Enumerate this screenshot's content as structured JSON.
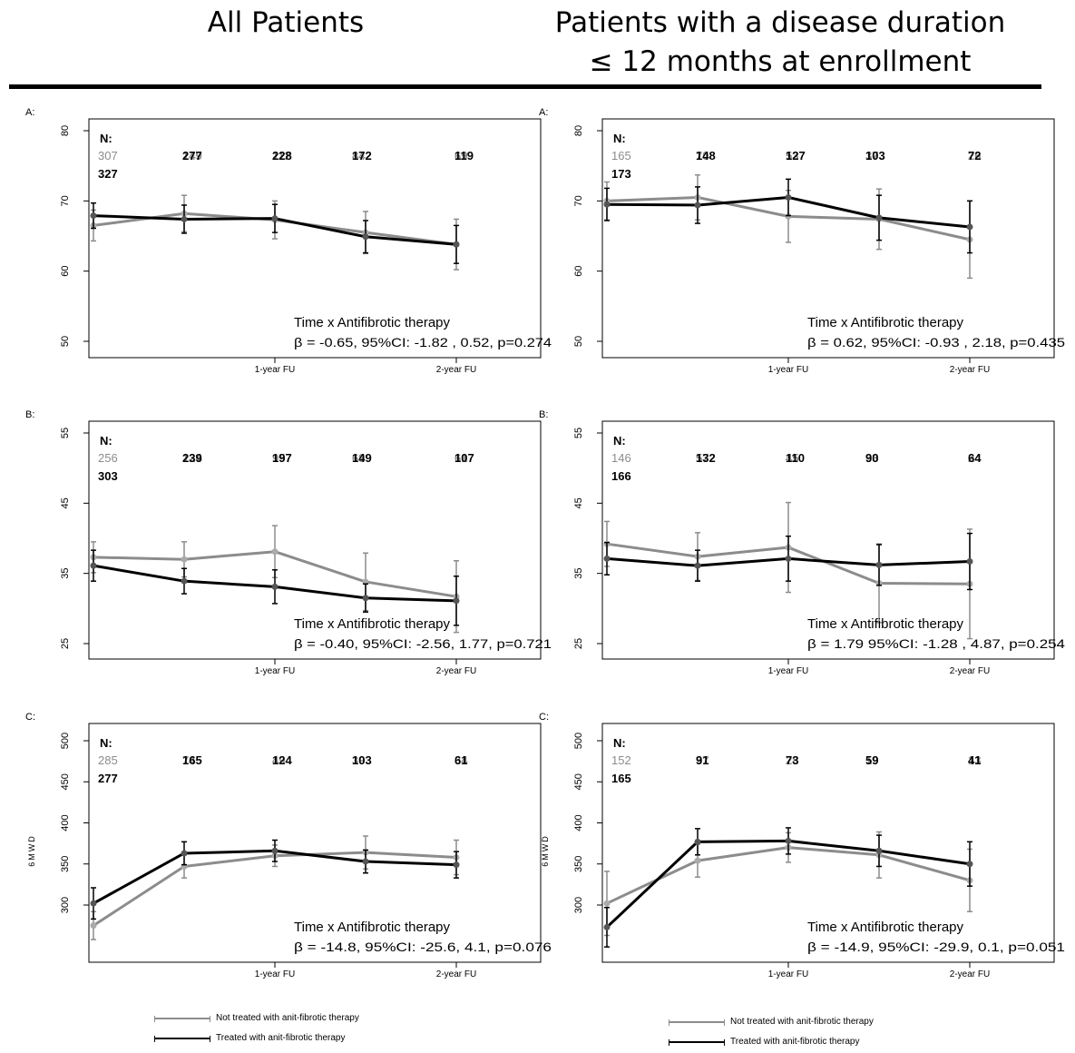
{
  "headings": {
    "left": "All Patients",
    "right_line1": "Patients with a disease duration",
    "right_line2": "≤ 12 months at enrollment"
  },
  "colors": {
    "not_treated": "#8c8c8c",
    "treated": "#000000"
  },
  "legend": {
    "not_treated_label": "Not treated with anit-fibrotic therapy",
    "treated_label": "Treated with anit-fibrotic therapy"
  },
  "chart_data": [
    {
      "type": "line",
      "panel_label": "A:",
      "group": "All Patients",
      "x": [
        0,
        0.5,
        1,
        1.5,
        2
      ],
      "xticks": [
        {
          "x": 1,
          "label": "1-year FU"
        },
        {
          "x": 2,
          "label": "2-year FU"
        }
      ],
      "ylim": [
        50,
        80
      ],
      "yticks": [
        50,
        60,
        70,
        80
      ],
      "ylabel": "",
      "series": [
        {
          "key": "not_treated",
          "values": [
            66.5,
            68.2,
            67.3,
            65.5,
            63.8
          ],
          "ci_low": [
            64.3,
            65.6,
            64.6,
            62.5,
            60.2
          ],
          "ci_high": [
            68.7,
            70.8,
            70.0,
            68.5,
            67.4
          ]
        },
        {
          "key": "treated",
          "values": [
            67.9,
            67.4,
            67.5,
            64.9,
            63.8
          ],
          "ci_low": [
            66.1,
            65.4,
            65.5,
            62.6,
            61.1
          ],
          "ci_high": [
            69.7,
            69.4,
            69.5,
            67.2,
            66.5
          ]
        }
      ],
      "n_label": "N:",
      "n_rows": {
        "not_treated": [
          "307",
          "149",
          "112",
          "84",
          "69"
        ],
        "treated": [
          "327",
          "277",
          "228",
          "172",
          "119"
        ]
      },
      "annotation_line1": "Time x Antifibrotic therapy",
      "annotation_line2": "β = -0.65, 95%CI: -1.82 , 0.52, p=0.274"
    },
    {
      "type": "line",
      "panel_label": "A:",
      "group": "Disease duration ≤ 12 months",
      "x": [
        0,
        0.5,
        1,
        1.5,
        2
      ],
      "xticks": [
        {
          "x": 1,
          "label": "1-year FU"
        },
        {
          "x": 2,
          "label": "2-year FU"
        }
      ],
      "ylim": [
        50,
        80
      ],
      "yticks": [
        50,
        60,
        70,
        80
      ],
      "ylabel": "",
      "series": [
        {
          "key": "not_treated",
          "values": [
            70.0,
            70.5,
            67.8,
            67.4,
            64.5
          ],
          "ci_low": [
            67.3,
            67.3,
            64.1,
            63.1,
            59.0
          ],
          "ci_high": [
            72.7,
            73.7,
            71.5,
            71.7,
            70.0
          ]
        },
        {
          "key": "treated",
          "values": [
            69.5,
            69.4,
            70.5,
            67.6,
            66.3
          ],
          "ci_low": [
            67.2,
            66.8,
            67.9,
            64.4,
            62.6
          ],
          "ci_high": [
            71.8,
            72.0,
            73.1,
            70.8,
            70.0
          ]
        }
      ],
      "n_label": "N:",
      "n_rows": {
        "not_treated": [
          "165",
          "70",
          "53",
          "37",
          "26"
        ],
        "treated": [
          "173",
          "148",
          "127",
          "103",
          "72"
        ]
      },
      "annotation_line1": "Time x Antifibrotic therapy",
      "annotation_line2": "β = 0.62, 95%CI: -0.93 , 2.18, p=0.435"
    },
    {
      "type": "line",
      "panel_label": "B:",
      "group": "All Patients",
      "x": [
        0,
        0.5,
        1,
        1.5,
        2
      ],
      "xticks": [
        {
          "x": 1,
          "label": "1-year FU"
        },
        {
          "x": 2,
          "label": "2-year FU"
        }
      ],
      "ylim": [
        25,
        55
      ],
      "yticks": [
        25,
        35,
        45,
        55
      ],
      "ylabel": "",
      "series": [
        {
          "key": "not_treated",
          "values": [
            37.3,
            37.0,
            38.1,
            33.8,
            31.7
          ],
          "ci_low": [
            35.1,
            34.5,
            34.4,
            29.7,
            26.6
          ],
          "ci_high": [
            39.5,
            39.5,
            41.8,
            37.9,
            36.8
          ]
        },
        {
          "key": "treated",
          "values": [
            36.1,
            33.9,
            33.1,
            31.5,
            31.1
          ],
          "ci_low": [
            33.9,
            32.1,
            30.7,
            29.5,
            27.6
          ],
          "ci_high": [
            38.3,
            35.7,
            35.5,
            33.5,
            34.6
          ]
        }
      ],
      "n_label": "N:",
      "n_rows": {
        "not_treated": [
          "256",
          "124",
          "95",
          "69",
          "61"
        ],
        "treated": [
          "303",
          "239",
          "197",
          "149",
          "107"
        ]
      },
      "annotation_line1": "Time x Antifibrotic therapy",
      "annotation_line2": "β = -0.40, 95%CI: -2.56, 1.77, p=0.721"
    },
    {
      "type": "line",
      "panel_label": "B:",
      "group": "Disease duration ≤ 12 months",
      "x": [
        0,
        0.5,
        1,
        1.5,
        2
      ],
      "xticks": [
        {
          "x": 1,
          "label": "1-year FU"
        },
        {
          "x": 2,
          "label": "2-year FU"
        }
      ],
      "ylim": [
        25,
        55
      ],
      "yticks": [
        25,
        35,
        45,
        55
      ],
      "ylabel": "",
      "series": [
        {
          "key": "not_treated",
          "values": [
            39.2,
            37.4,
            38.7,
            33.6,
            33.5
          ],
          "ci_low": [
            36.0,
            34.0,
            32.3,
            28.0,
            25.7
          ],
          "ci_high": [
            42.4,
            40.8,
            45.1,
            39.2,
            41.3
          ]
        },
        {
          "key": "treated",
          "values": [
            37.1,
            36.1,
            37.1,
            36.2,
            36.7
          ],
          "ci_low": [
            34.8,
            33.9,
            33.9,
            33.3,
            32.7
          ],
          "ci_high": [
            39.4,
            38.3,
            40.3,
            39.1,
            40.7
          ]
        }
      ],
      "n_label": "N:",
      "n_rows": {
        "not_treated": [
          "146",
          "57",
          "45",
          "33",
          "24"
        ],
        "treated": [
          "166",
          "132",
          "110",
          "90",
          "64"
        ]
      },
      "annotation_line1": "Time x Antifibrotic therapy",
      "annotation_line2": "β = 1.79 95%CI: -1.28 , 4.87, p=0.254"
    },
    {
      "type": "line",
      "panel_label": "C:",
      "group": "All Patients",
      "x": [
        0,
        0.5,
        1,
        1.5,
        2
      ],
      "xticks": [
        {
          "x": 1,
          "label": "1-year FU"
        },
        {
          "x": 2,
          "label": "2-year FU"
        }
      ],
      "ylim": [
        250,
        510
      ],
      "yticks": [
        300,
        350,
        400,
        450,
        500
      ],
      "ylabel": "6MWD",
      "series": [
        {
          "key": "not_treated",
          "values": [
            275,
            347,
            360,
            364,
            358
          ],
          "ci_low": [
            258,
            333,
            347,
            344,
            337
          ],
          "ci_high": [
            292,
            361,
            373,
            384,
            379
          ]
        },
        {
          "key": "treated",
          "values": [
            302,
            363,
            366,
            353,
            349
          ],
          "ci_low": [
            283,
            349,
            353,
            339,
            333
          ],
          "ci_high": [
            321,
            377,
            379,
            367,
            365
          ]
        }
      ],
      "n_label": "N:",
      "n_rows": {
        "not_treated": [
          "285",
          "74",
          "49",
          "39",
          "34"
        ],
        "treated": [
          "277",
          "165",
          "124",
          "103",
          "61"
        ]
      },
      "annotation_line1": "Time x Antifibrotic therapy",
      "annotation_line2": "β = -14.8, 95%CI: -25.6, 4.1, p=0.076"
    },
    {
      "type": "line",
      "panel_label": "C:",
      "group": "Disease duration ≤ 12 months",
      "x": [
        0,
        0.5,
        1,
        1.5,
        2
      ],
      "xticks": [
        {
          "x": 1,
          "label": "1-year FU"
        },
        {
          "x": 2,
          "label": "2-year FU"
        }
      ],
      "ylim": [
        250,
        510
      ],
      "yticks": [
        300,
        350,
        400,
        450,
        500
      ],
      "ylabel": "6MWD",
      "series": [
        {
          "key": "not_treated",
          "values": [
            302,
            354,
            370,
            361,
            330
          ],
          "ci_low": [
            263,
            334,
            352,
            333,
            292
          ],
          "ci_high": [
            341,
            374,
            388,
            389,
            368
          ]
        },
        {
          "key": "treated",
          "values": [
            273,
            377,
            378,
            366,
            350
          ],
          "ci_low": [
            249,
            361,
            362,
            347,
            323
          ],
          "ci_high": [
            297,
            393,
            394,
            385,
            377
          ]
        }
      ],
      "n_label": "N:",
      "n_rows": {
        "not_treated": [
          "152",
          "37",
          "28",
          "19",
          "13"
        ],
        "treated": [
          "165",
          "91",
          "73",
          "59",
          "41"
        ]
      },
      "annotation_line1": "Time x Antifibrotic therapy",
      "annotation_line2": "β = -14.9, 95%CI: -29.9, 0.1, p=0.051"
    }
  ]
}
